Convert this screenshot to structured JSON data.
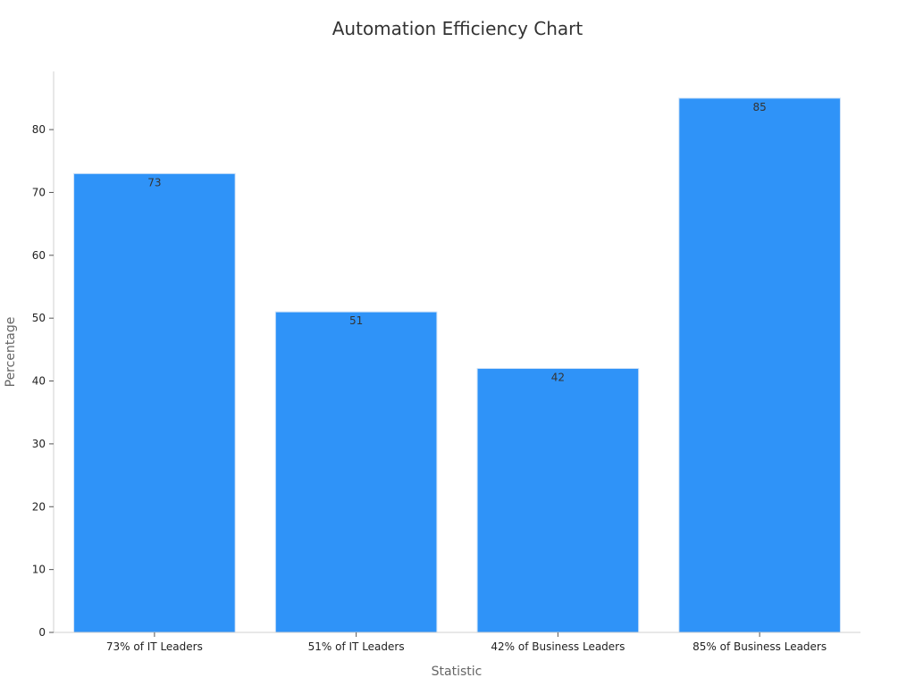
{
  "chart_data": {
    "type": "bar",
    "title": "Automation Efficiency Chart",
    "xlabel": "Statistic",
    "ylabel": "Percentage",
    "categories": [
      "73% of IT Leaders",
      "51% of IT Leaders",
      "42% of Business Leaders",
      "85% of Business Leaders"
    ],
    "values": [
      73,
      51,
      42,
      85
    ],
    "data_labels": [
      "73",
      "51",
      "42",
      "85"
    ],
    "yticks": [
      0,
      10,
      20,
      30,
      40,
      50,
      60,
      70,
      80
    ],
    "ytick_labels": [
      "0",
      "10",
      "20",
      "30",
      "40",
      "50",
      "60",
      "70",
      "80"
    ],
    "ylim": [
      0,
      89.25
    ],
    "grid": false,
    "bar_color": "#2f93f8",
    "bar_edge_color": "#cfe3f7"
  }
}
